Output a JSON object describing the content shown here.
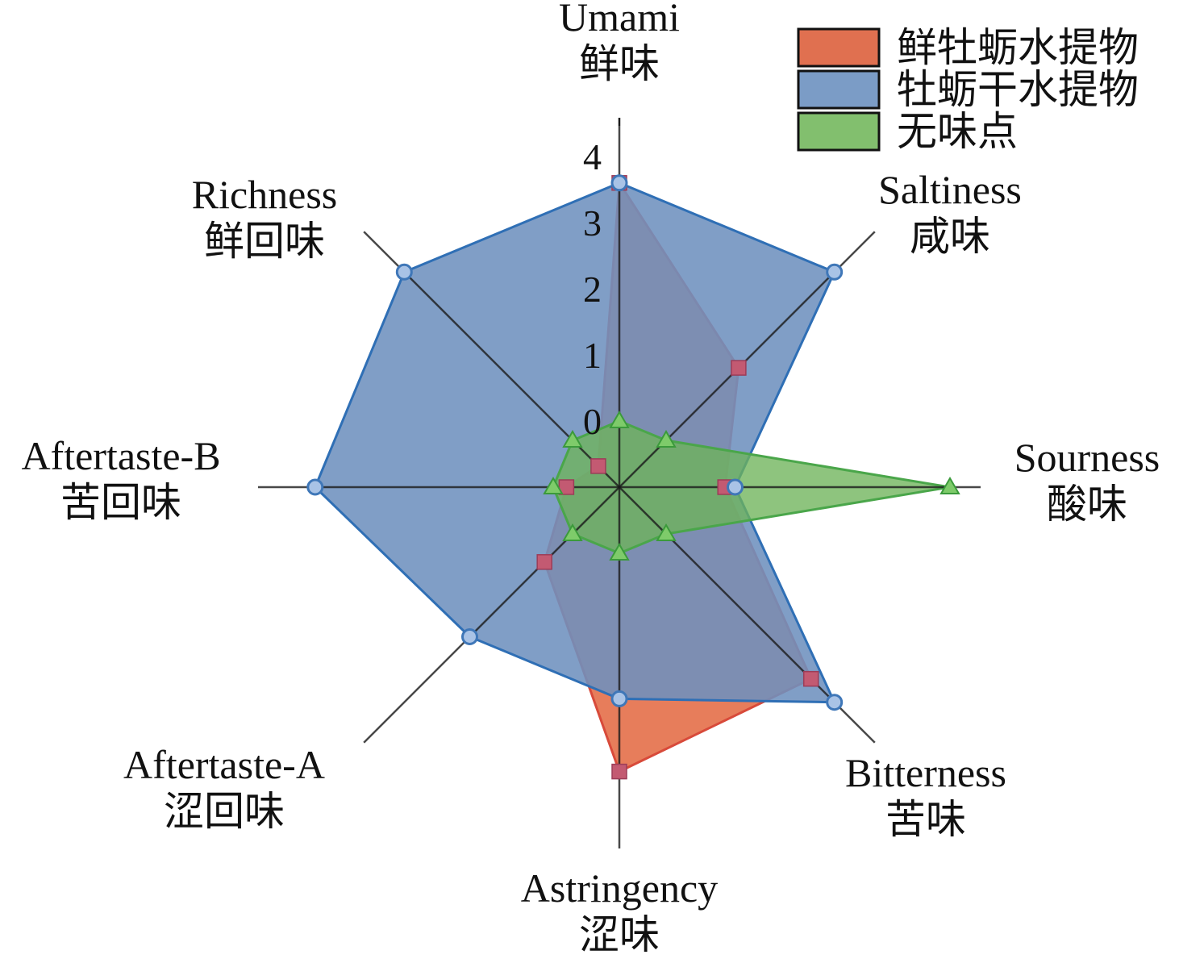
{
  "chart_data": {
    "type": "radar",
    "axes": [
      {
        "en": "Umami",
        "zh": "鲜味"
      },
      {
        "en": "Saltiness",
        "zh": "咸味"
      },
      {
        "en": "Sourness",
        "zh": "酸味"
      },
      {
        "en": "Bitterness",
        "zh": "苦味"
      },
      {
        "en": "Astringency",
        "zh": "涩味"
      },
      {
        "en": "Aftertaste-A",
        "zh": "涩回味"
      },
      {
        "en": "Aftertaste-B",
        "zh": "苦回味"
      },
      {
        "en": "Richness",
        "zh": "鲜回味"
      }
    ],
    "ticks": [
      "0",
      "1",
      "2",
      "3",
      "4"
    ],
    "r_range": [
      -1,
      4
    ],
    "series": [
      {
        "name": "鲜牡蛎水提物",
        "color": "#e5724d",
        "marker": "square",
        "values": [
          3.6,
          1.55,
          0.6,
          3.1,
          3.3,
          0.6,
          -0.2,
          -0.55
        ]
      },
      {
        "name": "牡蛎干水提物",
        "color": "#7898c4",
        "marker": "circle",
        "values": [
          3.6,
          3.6,
          0.75,
          3.6,
          2.2,
          2.2,
          3.6,
          3.6
        ]
      },
      {
        "name": "无味点",
        "color": "#7fbb6a",
        "marker": "triangle",
        "values": [
          0,
          0,
          4.0,
          0,
          0,
          0,
          0,
          0
        ]
      }
    ],
    "legend_position": "top-right"
  }
}
